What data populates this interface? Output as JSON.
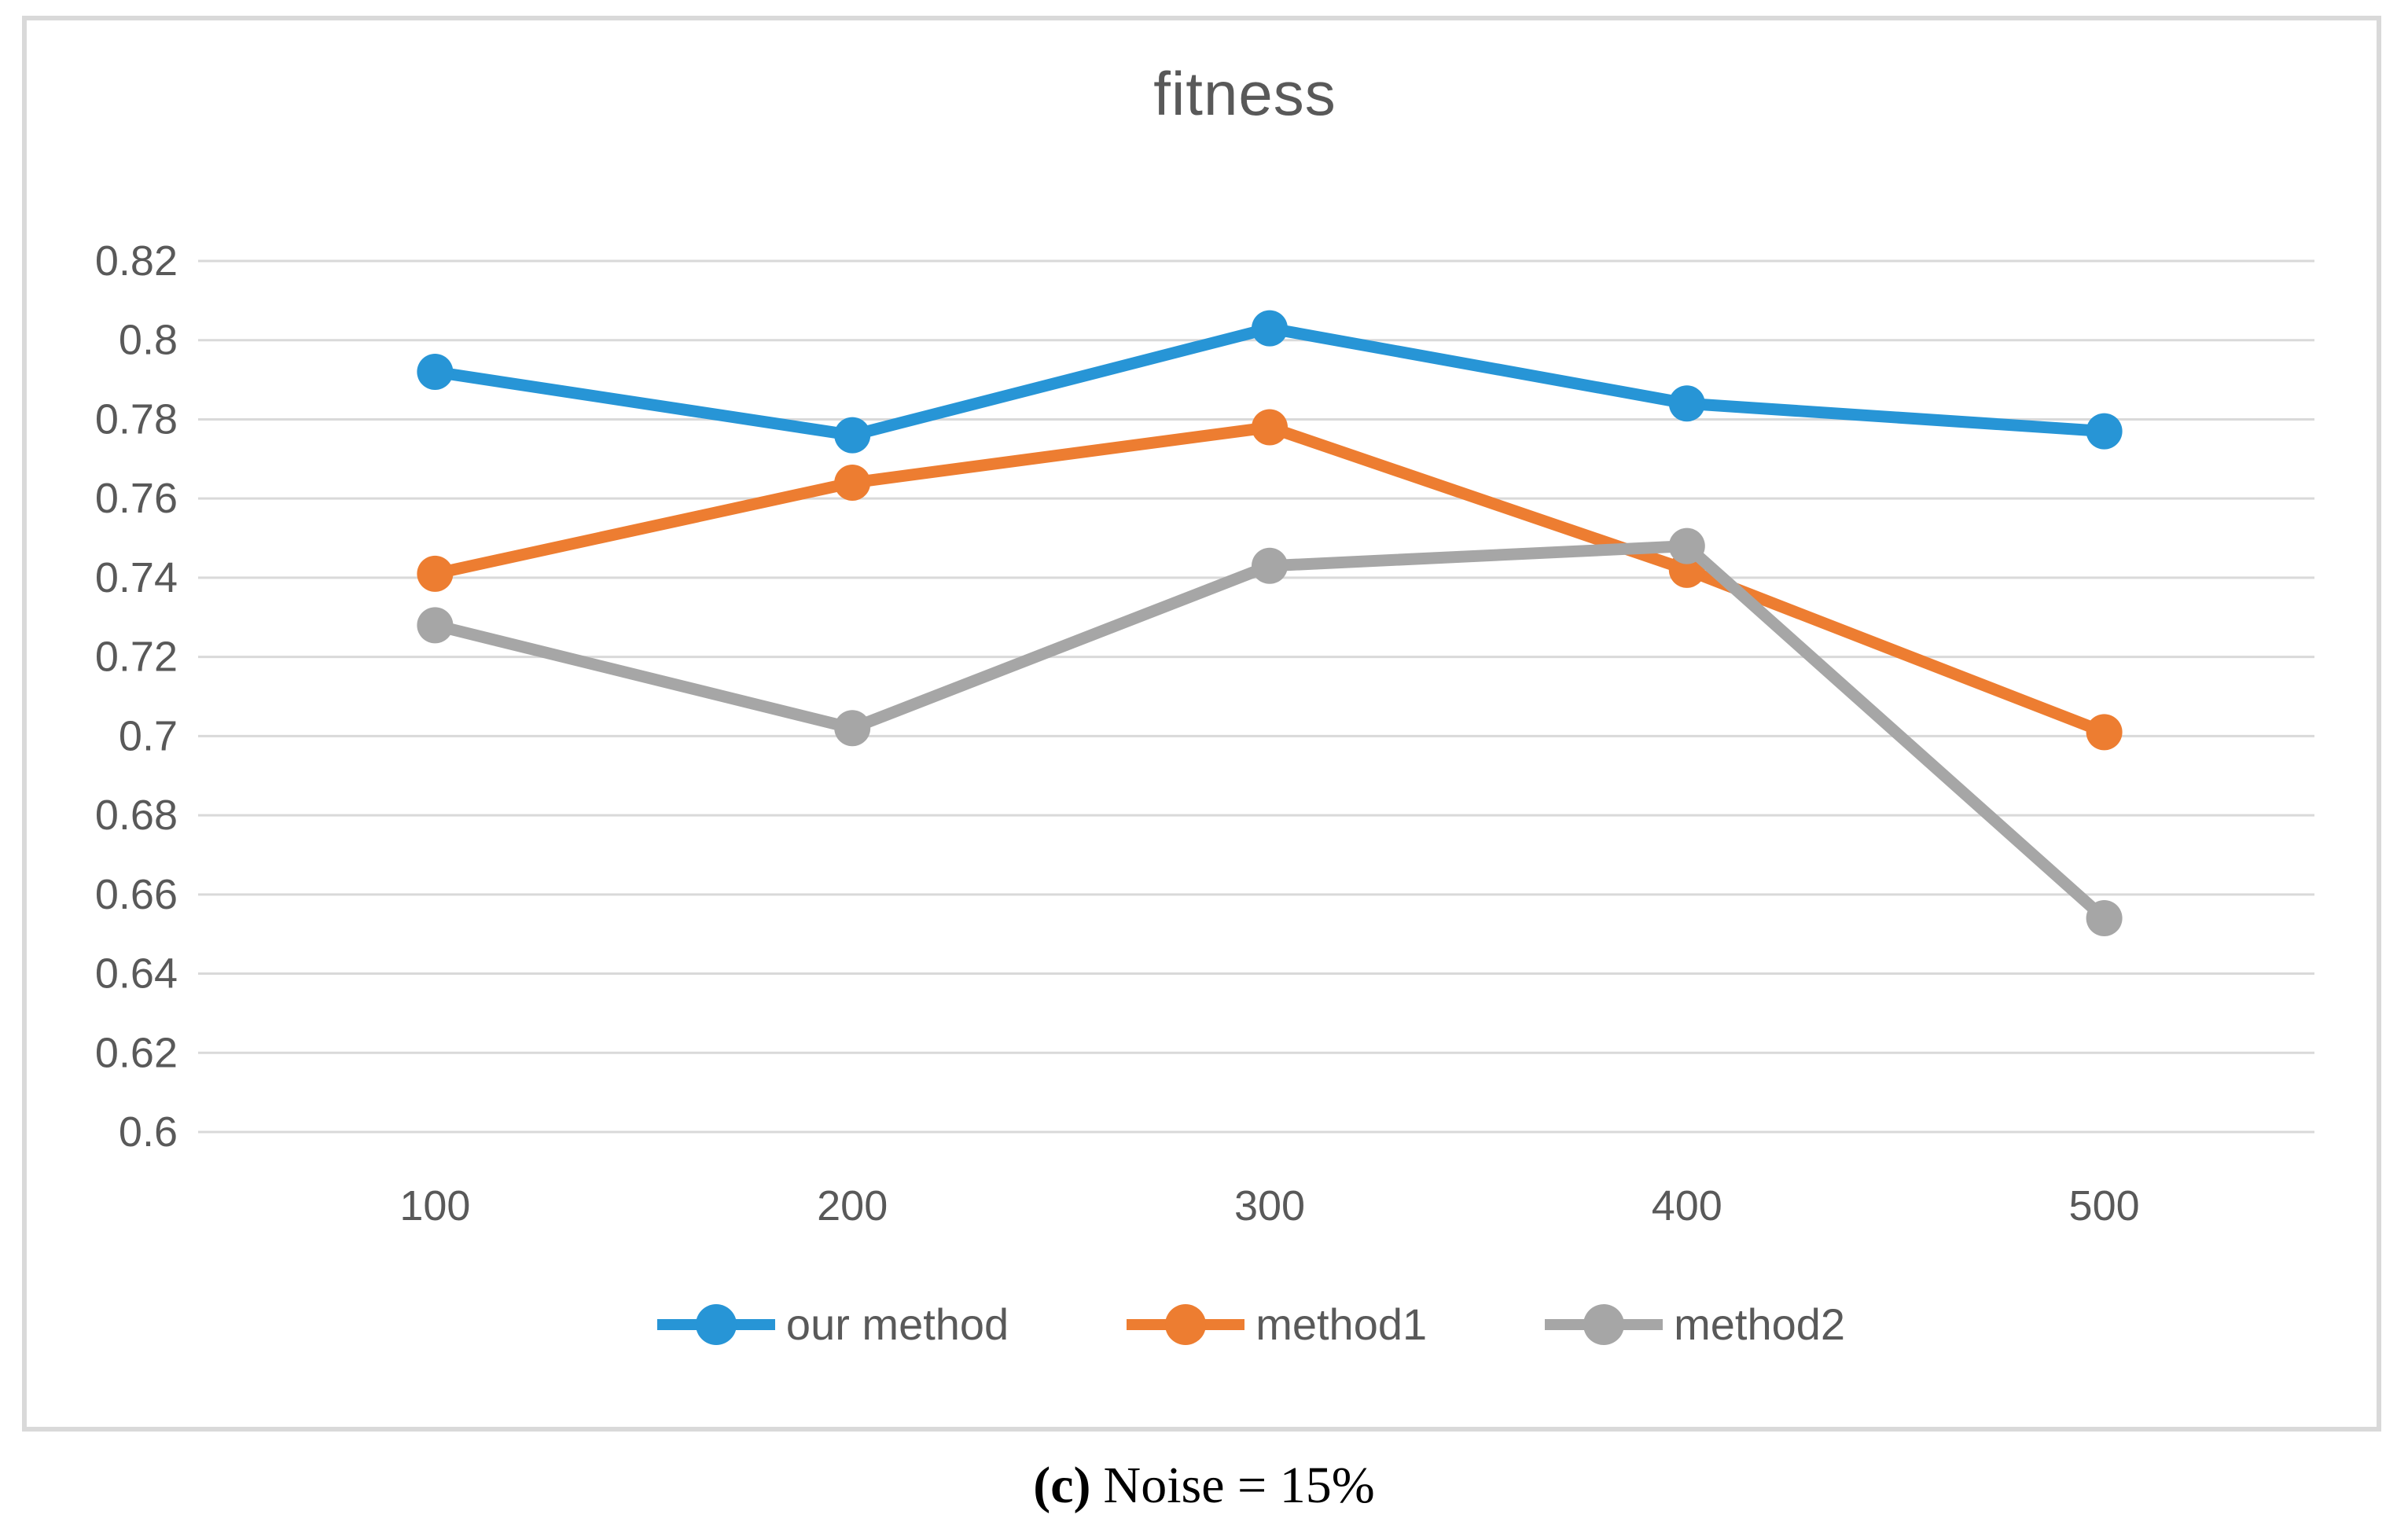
{
  "figure": {
    "title": "fitness",
    "caption": {
      "label": "(c)",
      "text": "Noise = 15%"
    }
  },
  "chart_data": {
    "type": "line",
    "title": "fitness",
    "categories": [
      100,
      200,
      300,
      400,
      500
    ],
    "series": [
      {
        "name": "our method",
        "color": "#2795D6",
        "values": [
          0.792,
          0.776,
          0.803,
          0.784,
          0.777
        ]
      },
      {
        "name": "method1",
        "color": "#ED7D31",
        "values": [
          0.741,
          0.764,
          0.778,
          0.742,
          0.701
        ]
      },
      {
        "name": "method2",
        "color": "#A6A6A6",
        "values": [
          0.728,
          0.702,
          0.743,
          0.748,
          0.654
        ]
      }
    ],
    "xlabel": "",
    "ylabel": "",
    "ylim": [
      0.6,
      0.82
    ],
    "ytick_step": 0.02,
    "yticks": [
      "0.82",
      "0.8",
      "0.78",
      "0.76",
      "0.74",
      "0.72",
      "0.7",
      "0.68",
      "0.66",
      "0.64",
      "0.62",
      "0.6"
    ],
    "xticks": [
      "100",
      "200",
      "300",
      "400",
      "500"
    ],
    "grid": true,
    "legend_position": "bottom",
    "colors": {
      "text": "#595959",
      "gridline": "#D9D9D9",
      "frame": "#D9D9D9",
      "background": "#ffffff"
    }
  }
}
